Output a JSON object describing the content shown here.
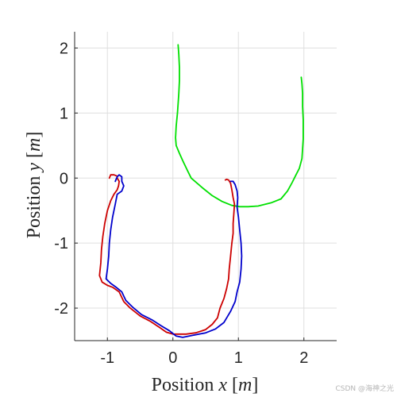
{
  "chart_data": {
    "type": "line",
    "xlabel": {
      "prefix": "Position ",
      "variable": "x",
      "unit_open": " [",
      "unit": "m",
      "unit_close": "]"
    },
    "ylabel": {
      "prefix": "Position ",
      "variable": "y",
      "unit_open": " [",
      "unit": "m",
      "unit_close": "]"
    },
    "xlim": [
      -1.5,
      2.5
    ],
    "ylim": [
      -2.5,
      2.25
    ],
    "xticks": [
      -1,
      0,
      1,
      2
    ],
    "yticks": [
      -2,
      -1,
      0,
      1,
      2
    ],
    "xtick_labels": [
      "-1",
      "0",
      "1",
      "2"
    ],
    "ytick_labels": [
      "-2",
      "-1",
      "0",
      "1",
      "2"
    ],
    "grid": true,
    "legend": "none",
    "series": [
      {
        "color": "#00e000",
        "points": [
          [
            0.08,
            2.05
          ],
          [
            0.09,
            1.9
          ],
          [
            0.1,
            1.7
          ],
          [
            0.1,
            1.5
          ],
          [
            0.09,
            1.3
          ],
          [
            0.07,
            1.0
          ],
          [
            0.05,
            0.8
          ],
          [
            0.04,
            0.62
          ],
          [
            0.05,
            0.5
          ],
          [
            0.1,
            0.38
          ],
          [
            0.15,
            0.27
          ],
          [
            0.22,
            0.12
          ],
          [
            0.28,
            0.0
          ],
          [
            0.45,
            -0.15
          ],
          [
            0.6,
            -0.27
          ],
          [
            0.75,
            -0.36
          ],
          [
            0.9,
            -0.42
          ],
          [
            1.02,
            -0.44
          ],
          [
            1.15,
            -0.44
          ],
          [
            1.3,
            -0.43
          ],
          [
            1.5,
            -0.38
          ],
          [
            1.65,
            -0.32
          ],
          [
            1.75,
            -0.2
          ],
          [
            1.82,
            -0.07
          ],
          [
            1.88,
            0.05
          ],
          [
            1.93,
            0.15
          ],
          [
            1.97,
            0.3
          ],
          [
            1.99,
            0.6
          ],
          [
            1.99,
            0.9
          ],
          [
            1.98,
            1.1
          ],
          [
            1.98,
            1.3
          ],
          [
            1.97,
            1.45
          ],
          [
            1.96,
            1.55
          ]
        ]
      },
      {
        "color": "#cc0000",
        "points": [
          [
            -0.97,
            0.0
          ],
          [
            -0.95,
            0.05
          ],
          [
            -0.9,
            0.05
          ],
          [
            -0.85,
            0.03
          ],
          [
            -0.85,
            0.0
          ],
          [
            -0.82,
            -0.05
          ],
          [
            -0.83,
            -0.12
          ],
          [
            -0.85,
            -0.18
          ],
          [
            -0.9,
            -0.25
          ],
          [
            -0.95,
            -0.35
          ],
          [
            -1.0,
            -0.5
          ],
          [
            -1.04,
            -0.7
          ],
          [
            -1.07,
            -0.9
          ],
          [
            -1.09,
            -1.1
          ],
          [
            -1.1,
            -1.3
          ],
          [
            -1.12,
            -1.5
          ],
          [
            -1.08,
            -1.6
          ],
          [
            -1.0,
            -1.65
          ],
          [
            -0.92,
            -1.68
          ],
          [
            -0.82,
            -1.75
          ],
          [
            -0.75,
            -1.9
          ],
          [
            -0.65,
            -2.0
          ],
          [
            -0.5,
            -2.12
          ],
          [
            -0.35,
            -2.2
          ],
          [
            -0.2,
            -2.3
          ],
          [
            -0.1,
            -2.37
          ],
          [
            0.0,
            -2.4
          ],
          [
            0.2,
            -2.4
          ],
          [
            0.35,
            -2.38
          ],
          [
            0.5,
            -2.33
          ],
          [
            0.6,
            -2.25
          ],
          [
            0.68,
            -2.15
          ],
          [
            0.72,
            -2.0
          ],
          [
            0.78,
            -1.85
          ],
          [
            0.82,
            -1.7
          ],
          [
            0.85,
            -1.55
          ],
          [
            0.86,
            -1.4
          ],
          [
            0.88,
            -1.2
          ],
          [
            0.9,
            -1.0
          ],
          [
            0.92,
            -0.85
          ],
          [
            0.92,
            -0.7
          ],
          [
            0.93,
            -0.55
          ],
          [
            0.94,
            -0.4
          ],
          [
            0.92,
            -0.3
          ],
          [
            0.9,
            -0.18
          ],
          [
            0.88,
            -0.08
          ],
          [
            0.85,
            -0.03
          ],
          [
            0.82,
            -0.02
          ],
          [
            0.8,
            -0.03
          ]
        ]
      },
      {
        "color": "#0000cc",
        "points": [
          [
            -0.88,
            -0.05
          ],
          [
            -0.85,
            0.02
          ],
          [
            -0.82,
            0.05
          ],
          [
            -0.78,
            0.02
          ],
          [
            -0.78,
            -0.05
          ],
          [
            -0.75,
            -0.12
          ],
          [
            -0.78,
            -0.2
          ],
          [
            -0.85,
            -0.25
          ],
          [
            -0.88,
            -0.4
          ],
          [
            -0.92,
            -0.6
          ],
          [
            -0.95,
            -0.8
          ],
          [
            -0.97,
            -1.0
          ],
          [
            -0.98,
            -1.2
          ],
          [
            -1.0,
            -1.4
          ],
          [
            -1.02,
            -1.55
          ],
          [
            -0.95,
            -1.62
          ],
          [
            -0.88,
            -1.67
          ],
          [
            -0.78,
            -1.75
          ],
          [
            -0.72,
            -1.88
          ],
          [
            -0.62,
            -1.98
          ],
          [
            -0.48,
            -2.1
          ],
          [
            -0.32,
            -2.18
          ],
          [
            -0.18,
            -2.27
          ],
          [
            -0.05,
            -2.35
          ],
          [
            0.05,
            -2.43
          ],
          [
            0.15,
            -2.45
          ],
          [
            0.3,
            -2.42
          ],
          [
            0.5,
            -2.38
          ],
          [
            0.65,
            -2.32
          ],
          [
            0.78,
            -2.22
          ],
          [
            0.88,
            -2.05
          ],
          [
            0.95,
            -1.9
          ],
          [
            0.98,
            -1.75
          ],
          [
            1.02,
            -1.6
          ],
          [
            1.04,
            -1.4
          ],
          [
            1.05,
            -1.2
          ],
          [
            1.04,
            -1.0
          ],
          [
            1.02,
            -0.8
          ],
          [
            1.0,
            -0.6
          ],
          [
            0.98,
            -0.45
          ],
          [
            0.99,
            -0.3
          ],
          [
            0.98,
            -0.2
          ],
          [
            0.95,
            -0.1
          ],
          [
            0.92,
            -0.05
          ],
          [
            0.88,
            -0.05
          ]
        ]
      }
    ]
  },
  "watermark": "CSDN @海神之光"
}
